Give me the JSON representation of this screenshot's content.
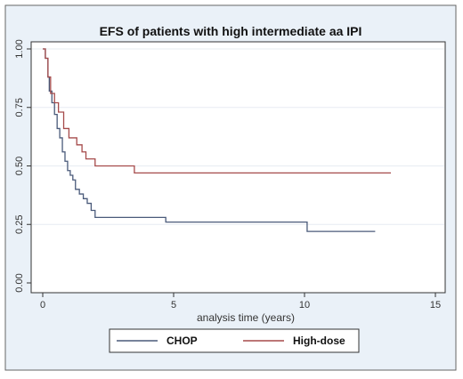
{
  "chart_data": {
    "type": "line",
    "title": "EFS of patients with high intermediate aa IPI",
    "xlabel": "analysis time  (years)",
    "ylabel": "",
    "xlim": [
      0,
      15
    ],
    "ylim": [
      0,
      1
    ],
    "x_ticks": [
      0,
      5,
      10,
      15
    ],
    "y_ticks": [
      0,
      0.25,
      0.5,
      0.75,
      1
    ],
    "x_tick_labels": [
      "0",
      "5",
      "10",
      "15"
    ],
    "y_tick_labels": [
      "0.00",
      "0.25",
      "0.50",
      "0.75",
      "1.00"
    ],
    "grid": "horizontal",
    "legend_position": "bottom",
    "step": true,
    "series": [
      {
        "name": "CHOP",
        "color": "#4a5a7a",
        "x": [
          0,
          0.1,
          0.2,
          0.25,
          0.35,
          0.45,
          0.55,
          0.65,
          0.75,
          0.85,
          0.95,
          1.05,
          1.15,
          1.25,
          1.4,
          1.55,
          1.7,
          1.85,
          2.0,
          4.7,
          10.1,
          12.7
        ],
        "y": [
          1.0,
          0.96,
          0.88,
          0.82,
          0.77,
          0.72,
          0.66,
          0.62,
          0.56,
          0.52,
          0.48,
          0.46,
          0.44,
          0.4,
          0.38,
          0.36,
          0.34,
          0.31,
          0.28,
          0.26,
          0.22,
          0.22
        ]
      },
      {
        "name": "High-dose",
        "color": "#a54a4a",
        "x": [
          0,
          0.1,
          0.2,
          0.3,
          0.45,
          0.6,
          0.8,
          1.0,
          1.3,
          1.5,
          1.65,
          1.8,
          2.0,
          3.5,
          13.3
        ],
        "y": [
          1.0,
          0.96,
          0.88,
          0.81,
          0.77,
          0.73,
          0.66,
          0.62,
          0.59,
          0.56,
          0.53,
          0.53,
          0.5,
          0.47,
          0.47
        ]
      }
    ]
  }
}
